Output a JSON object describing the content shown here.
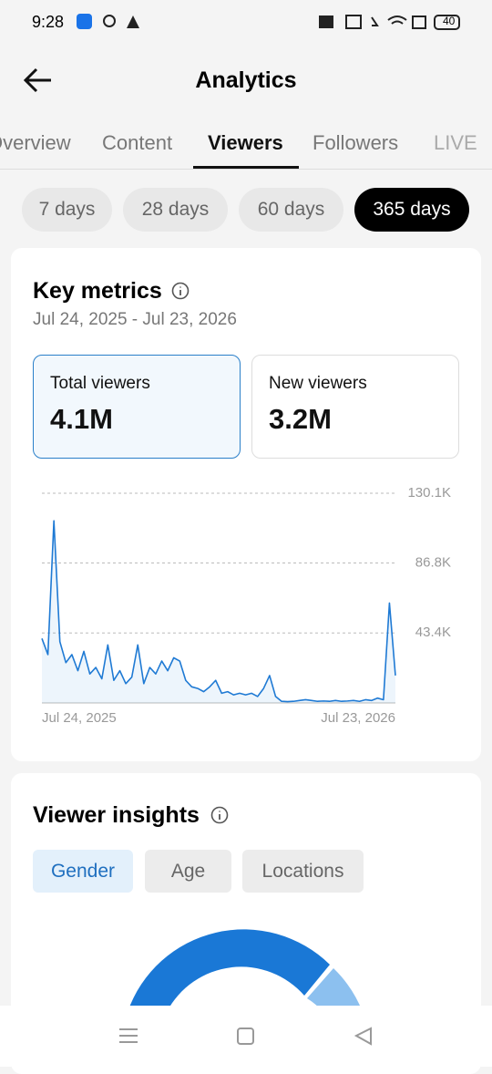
{
  "status_bar": {
    "time": "9:28",
    "battery": "40"
  },
  "header": {
    "title": "Analytics"
  },
  "tabs": [
    "Overview",
    "Content",
    "Viewers",
    "Followers",
    "LIVE"
  ],
  "ranges": [
    "7 days",
    "28 days",
    "60 days",
    "365 days"
  ],
  "key_metrics": {
    "title": "Key metrics",
    "date_range": "Jul 24, 2025 - Jul 23, 2026",
    "cards": [
      {
        "label": "Total viewers",
        "value": "4.1M"
      },
      {
        "label": "New viewers",
        "value": "3.2M"
      }
    ]
  },
  "chart_data": {
    "type": "line",
    "color": "#1f7ad4",
    "categories": [
      "Jul 24, 2025",
      null,
      null,
      null,
      null,
      null,
      null,
      null,
      null,
      null,
      null,
      null,
      null,
      null,
      null,
      null,
      null,
      null,
      null,
      null,
      null,
      null,
      null,
      null,
      null,
      null,
      null,
      null,
      null,
      null,
      null,
      null,
      null,
      null,
      null,
      null,
      null,
      null,
      null,
      null,
      null,
      null,
      null,
      null,
      null,
      null,
      null,
      null,
      null,
      null,
      null,
      null,
      null,
      null,
      null,
      null,
      null,
      null,
      null,
      "Jul 23, 2026"
    ],
    "values": [
      40000,
      30000,
      113000,
      38000,
      25000,
      30000,
      20000,
      32000,
      18000,
      22000,
      15000,
      36000,
      14000,
      20000,
      12000,
      16000,
      36000,
      12000,
      22000,
      18000,
      26000,
      20000,
      28000,
      26000,
      14000,
      10000,
      9000,
      7000,
      10000,
      14000,
      6000,
      7000,
      5000,
      6000,
      5000,
      6000,
      4000,
      9000,
      17000,
      4000,
      1000,
      800,
      1000,
      1500,
      2000,
      1500,
      1000,
      1200,
      1000,
      1500,
      1000,
      1200,
      1500,
      1000,
      2000,
      1500,
      3000,
      2000,
      62000,
      17000
    ],
    "ylim": [
      0,
      130100
    ],
    "yticks": [
      {
        "value": 43400,
        "label": "43.4K"
      },
      {
        "value": 86800,
        "label": "86.8K"
      },
      {
        "value": 130100,
        "label": "130.1K"
      }
    ],
    "grid": true
  },
  "viewer_insights": {
    "title": "Viewer insights",
    "tabs": [
      "Gender",
      "Age",
      "Locations"
    ]
  }
}
